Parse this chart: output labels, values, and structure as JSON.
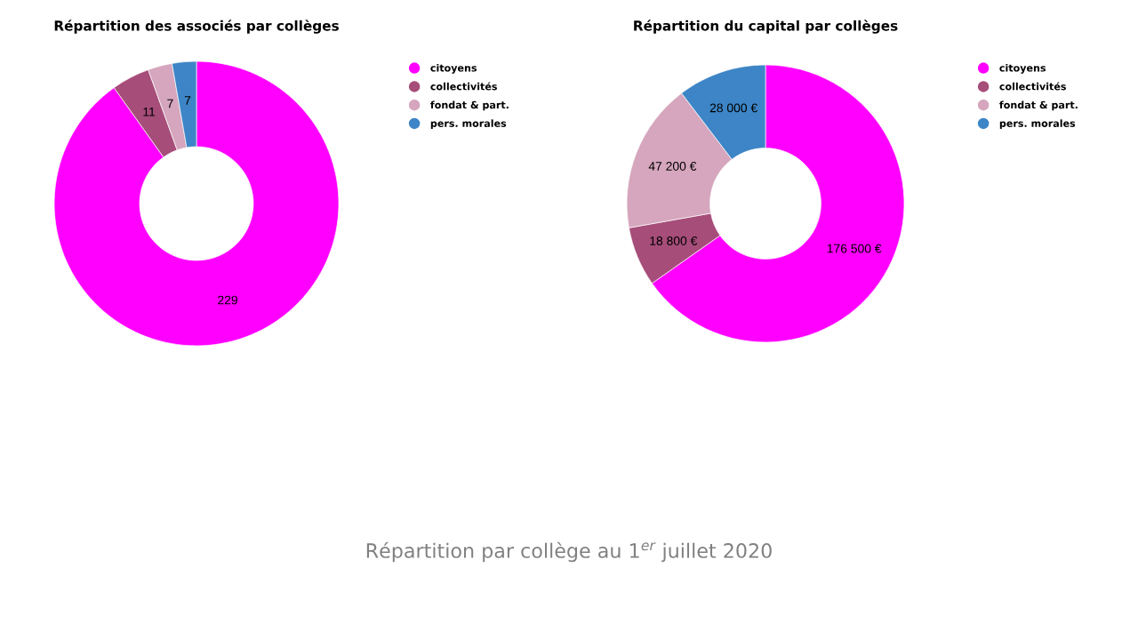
{
  "chart_data": [
    {
      "type": "donut",
      "title": "Répartition des associés par collèges",
      "categories": [
        "citoyens",
        "collectivités",
        "fondat & part.",
        "pers. morales"
      ],
      "values": [
        229,
        11,
        7,
        7
      ],
      "colors": [
        "#ff00ff",
        "#a64d79",
        "#d5a6bd",
        "#3d85c6"
      ],
      "data_labels": true,
      "legend": "top right",
      "annotations": [
        "Répartition par collège au 1$^{er}$ juillet 2020"
      ]
    },
    {
      "type": "donut",
      "title": "Répartition du capital par collèges",
      "categories": [
        "citoyens",
        "collectivités",
        "fondat & part.",
        "pers. morales"
      ],
      "values": [
        176500,
        18800,
        47200,
        28000
      ],
      "value_labels": [
        "176 500 €",
        "18 800 €",
        "47 200 €",
        "28 000 €"
      ],
      "colors": [
        "#ff00ff",
        "#a64d79",
        "#d5a6bd",
        "#3d85c6"
      ],
      "legend": "top right"
    }
  ]
}
